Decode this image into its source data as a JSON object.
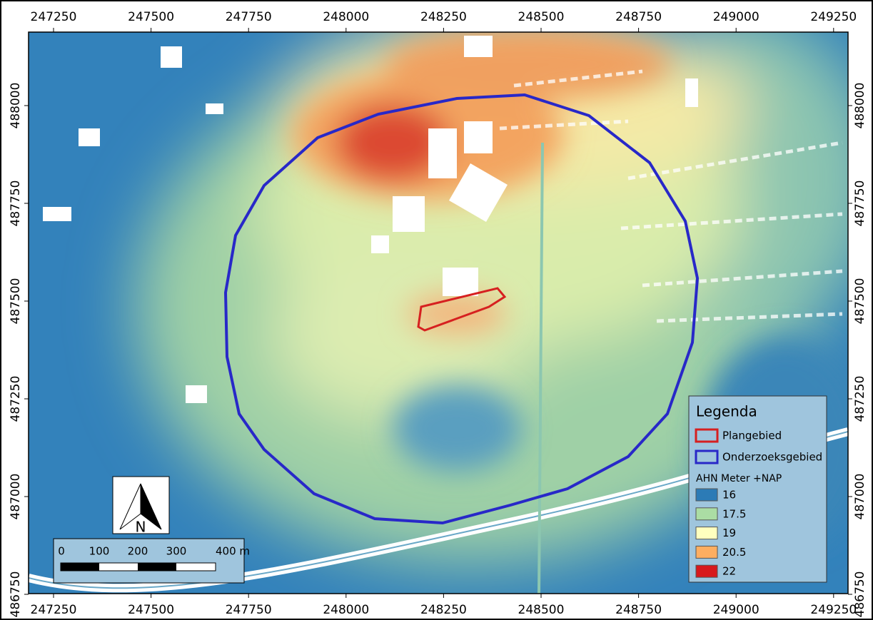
{
  "map": {
    "xticks": [
      247250,
      247500,
      247750,
      248000,
      248250,
      248500,
      248750,
      249000,
      249250
    ],
    "yticks": [
      488000,
      487750,
      487500,
      487250,
      487000,
      486750
    ],
    "north_label": "N",
    "scale_labels": [
      "0",
      "100",
      "200",
      "300",
      "400 m"
    ],
    "legend": {
      "title": "Legenda",
      "areas": [
        {
          "label": "Plangebied",
          "color": "#d62020"
        },
        {
          "label": "Onderzoeksgebied",
          "color": "#2828c8"
        }
      ],
      "ramp_title": "AHN Meter +NAP",
      "ramp": [
        {
          "label": "16",
          "color": "#2c7bb6"
        },
        {
          "label": "17.5",
          "color": "#abdda4"
        },
        {
          "label": "19",
          "color": "#ffffbf"
        },
        {
          "label": "20.5",
          "color": "#fdae61"
        },
        {
          "label": "22",
          "color": "#d7191c"
        }
      ]
    }
  }
}
